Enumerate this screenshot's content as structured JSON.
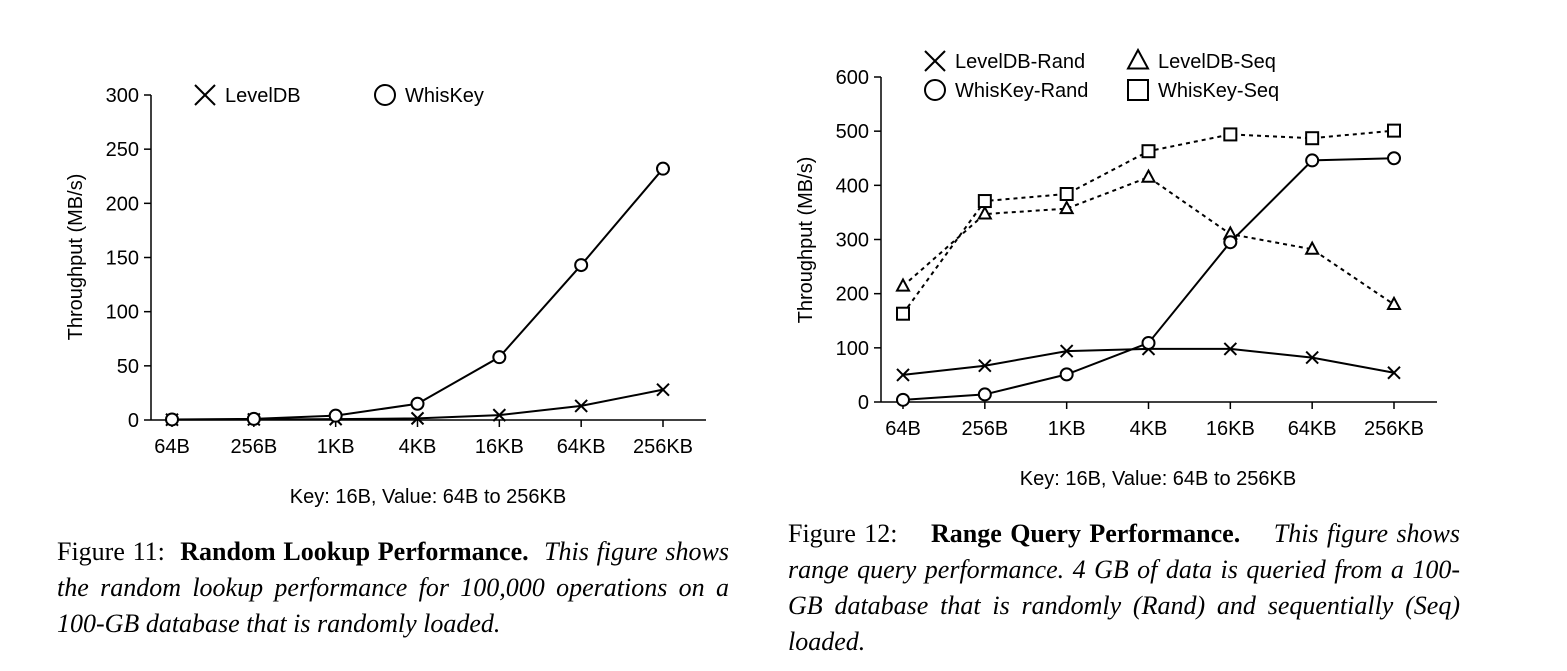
{
  "chart_data": [
    {
      "type": "line",
      "xlabel": "Key: 16B, Value: 64B to 256KB",
      "ylabel": "Throughput (MB/s)",
      "categories": [
        "64B",
        "256B",
        "1KB",
        "4KB",
        "16KB",
        "64KB",
        "256KB"
      ],
      "ylim": [
        0,
        300
      ],
      "yticks": [
        0,
        50,
        100,
        150,
        200,
        250,
        300
      ],
      "legend_position": "top",
      "series": [
        {
          "name": "LevelDB",
          "marker": "x",
          "line": "solid",
          "values": [
            0.3,
            0.5,
            0.8,
            1.5,
            4.5,
            13,
            28
          ]
        },
        {
          "name": "WhisKey",
          "marker": "circle",
          "line": "solid",
          "values": [
            0.5,
            1,
            4,
            15,
            58,
            143,
            232
          ]
        }
      ]
    },
    {
      "type": "line",
      "xlabel": "Key: 16B, Value: 64B to 256KB",
      "ylabel": "Throughput (MB/s)",
      "categories": [
        "64B",
        "256B",
        "1KB",
        "4KB",
        "16KB",
        "64KB",
        "256KB"
      ],
      "ylim": [
        0,
        600
      ],
      "yticks": [
        0,
        100,
        200,
        300,
        400,
        500,
        600
      ],
      "legend_position": "top",
      "series": [
        {
          "name": "LevelDB-Rand",
          "marker": "x",
          "line": "solid",
          "values": [
            50,
            67,
            94,
            98,
            98,
            82,
            54
          ]
        },
        {
          "name": "LevelDB-Seq",
          "marker": "triangle",
          "line": "dotted",
          "values": [
            214,
            347,
            357,
            415,
            310,
            282,
            180
          ]
        },
        {
          "name": "WhisKey-Rand",
          "marker": "circle",
          "line": "solid",
          "values": [
            4,
            14,
            51,
            109,
            295,
            446,
            450
          ]
        },
        {
          "name": "WhisKey-Seq",
          "marker": "square",
          "line": "dotted",
          "values": [
            163,
            371,
            384,
            463,
            494,
            487,
            501
          ]
        }
      ]
    }
  ],
  "captions": [
    {
      "figure": "Figure 11:",
      "title": "Random Lookup Performance.",
      "text": "This figure shows the random lookup performance for 100,000 operations on a 100-GB database that is randomly loaded."
    },
    {
      "figure": "Figure 12:",
      "title": "Range Query Performance.",
      "text": "This figure shows range query performance. 4 GB of data is queried from a 100-GB database that is randomly (Rand) and sequentially (Seq) loaded."
    }
  ]
}
